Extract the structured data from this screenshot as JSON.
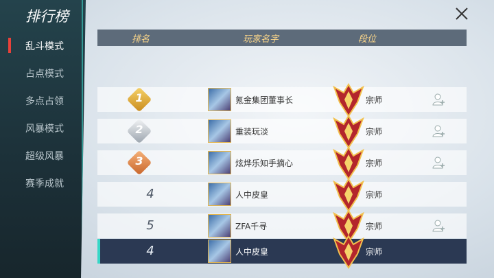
{
  "sidebar": {
    "title": "排行榜",
    "menu": [
      "乱斗模式",
      "占点模式",
      "多点占领",
      "风暴模式",
      "超级风暴",
      "赛季成就"
    ],
    "active": 0
  },
  "table": {
    "columns": [
      "排名",
      "玩家名字",
      "段位"
    ],
    "rows": [
      {
        "rank": 1,
        "name": "氪金集团董事长",
        "tier": "宗师",
        "add_friend": true
      },
      {
        "rank": 2,
        "name": "重装玩淡",
        "tier": "宗师",
        "add_friend": true
      },
      {
        "rank": 3,
        "name": "炫烨乐知手摘心",
        "tier": "宗师",
        "add_friend": true
      },
      {
        "rank": 4,
        "name": "人中皮皇",
        "tier": "宗师",
        "add_friend": false
      },
      {
        "rank": 5,
        "name": "ZFA千寻",
        "tier": "宗师",
        "add_friend": true
      }
    ]
  },
  "self_row": {
    "rank": 4,
    "name": "人中皮皇",
    "tier": "宗师"
  }
}
